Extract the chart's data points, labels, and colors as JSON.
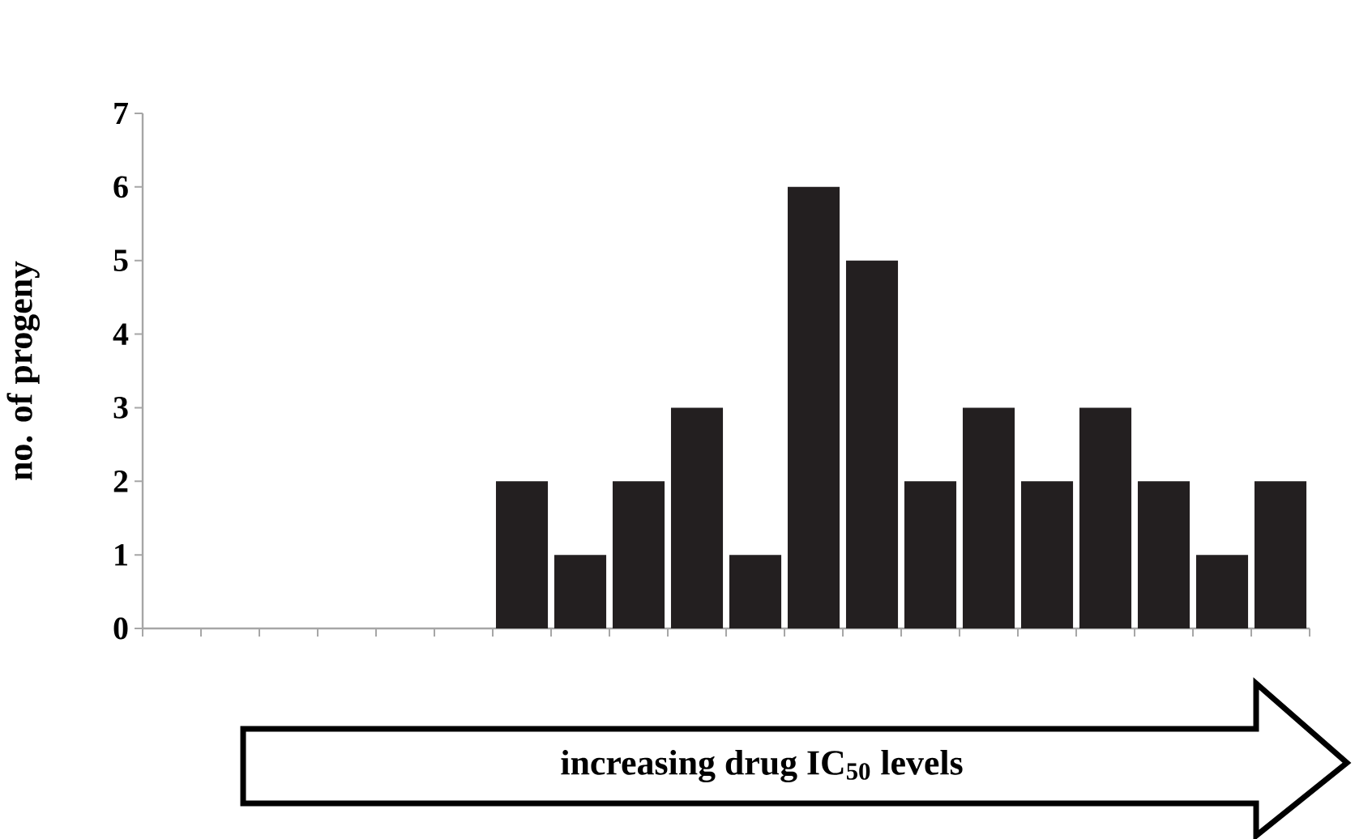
{
  "chart_data": {
    "type": "bar",
    "xlabel": "increasing drug IC$_{50}$ levels",
    "ylabel": "no. of progeny",
    "categories": [
      null,
      null,
      null,
      null,
      null,
      null,
      null,
      null,
      null,
      null,
      null,
      null,
      null,
      null,
      null,
      null,
      null,
      null,
      null,
      null
    ],
    "values": [
      null,
      null,
      null,
      null,
      null,
      null,
      2,
      1,
      2,
      3,
      1,
      6,
      5,
      2,
      3,
      2,
      3,
      2,
      1,
      2
    ],
    "color": "#231f20",
    "ylim": [
      0,
      7
    ],
    "yticks": [
      0,
      1,
      2,
      3,
      4,
      5,
      6,
      7
    ]
  }
}
